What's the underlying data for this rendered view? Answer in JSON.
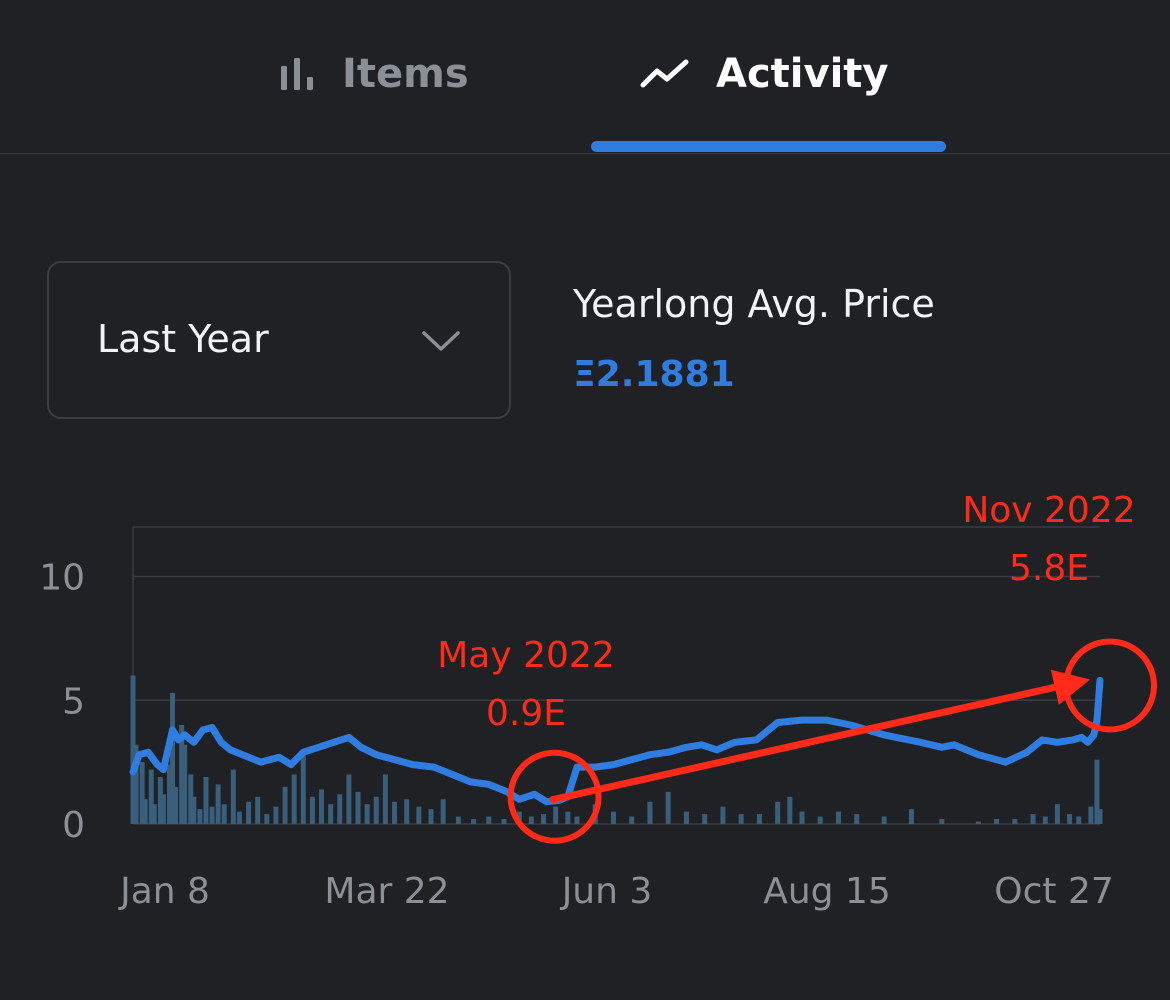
{
  "tabs": [
    {
      "label": "Items",
      "icon": "bar-chart-icon",
      "active": false
    },
    {
      "label": "Activity",
      "icon": "trend-line-icon",
      "active": true
    }
  ],
  "range_select": {
    "value": "Last Year",
    "icon": "chevron-down-icon"
  },
  "summary": {
    "title": "Yearlong Avg. Price",
    "value": "Ξ2.1881"
  },
  "colors": {
    "accent": "#2f7de1",
    "annotation": "#ff2a17",
    "volume": "#3a5f7c",
    "background": "#202124"
  },
  "chart_data": {
    "type": "line",
    "title": "",
    "xlabel": "",
    "ylabel": "",
    "ylim": [
      0,
      12
    ],
    "y_ticks": [
      0,
      5,
      10
    ],
    "x_tick_labels": [
      "Jan 8",
      "Mar 22",
      "Jun 3",
      "Aug 15",
      "Oct 27"
    ],
    "x_range": [
      "2022-01-01",
      "2022-11-15"
    ],
    "grid": true,
    "series": [
      {
        "kind": "line",
        "points": [
          [
            "2022-01-01",
            2.1
          ],
          [
            "2022-01-03",
            2.8
          ],
          [
            "2022-01-06",
            2.9
          ],
          [
            "2022-01-09",
            2.4
          ],
          [
            "2022-01-11",
            2.2
          ],
          [
            "2022-01-14",
            3.8
          ],
          [
            "2022-01-16",
            3.4
          ],
          [
            "2022-01-18",
            3.6
          ],
          [
            "2022-01-21",
            3.3
          ],
          [
            "2022-01-24",
            3.8
          ],
          [
            "2022-01-27",
            3.9
          ],
          [
            "2022-01-30",
            3.3
          ],
          [
            "2022-02-02",
            3.0
          ],
          [
            "2022-02-06",
            2.8
          ],
          [
            "2022-02-12",
            2.5
          ],
          [
            "2022-02-18",
            2.7
          ],
          [
            "2022-02-22",
            2.4
          ],
          [
            "2022-02-26",
            2.9
          ],
          [
            "2022-03-03",
            3.1
          ],
          [
            "2022-03-08",
            3.3
          ],
          [
            "2022-03-13",
            3.5
          ],
          [
            "2022-03-17",
            3.1
          ],
          [
            "2022-03-22",
            2.8
          ],
          [
            "2022-03-28",
            2.6
          ],
          [
            "2022-04-03",
            2.4
          ],
          [
            "2022-04-10",
            2.3
          ],
          [
            "2022-04-16",
            2.0
          ],
          [
            "2022-04-22",
            1.7
          ],
          [
            "2022-04-28",
            1.6
          ],
          [
            "2022-05-04",
            1.3
          ],
          [
            "2022-05-08",
            1.0
          ],
          [
            "2022-05-13",
            1.2
          ],
          [
            "2022-05-17",
            0.9
          ],
          [
            "2022-05-21",
            0.95
          ],
          [
            "2022-05-24",
            1.1
          ],
          [
            "2022-05-27",
            2.3
          ],
          [
            "2022-06-02",
            2.3
          ],
          [
            "2022-06-08",
            2.4
          ],
          [
            "2022-06-14",
            2.6
          ],
          [
            "2022-06-20",
            2.8
          ],
          [
            "2022-06-26",
            2.9
          ],
          [
            "2022-07-02",
            3.1
          ],
          [
            "2022-07-07",
            3.2
          ],
          [
            "2022-07-12",
            3.0
          ],
          [
            "2022-07-18",
            3.3
          ],
          [
            "2022-07-25",
            3.4
          ],
          [
            "2022-08-01",
            4.1
          ],
          [
            "2022-08-09",
            4.2
          ],
          [
            "2022-08-17",
            4.2
          ],
          [
            "2022-08-25",
            4.0
          ],
          [
            "2022-09-05",
            3.6
          ],
          [
            "2022-09-17",
            3.3
          ],
          [
            "2022-09-24",
            3.1
          ],
          [
            "2022-09-28",
            3.2
          ],
          [
            "2022-10-06",
            2.8
          ],
          [
            "2022-10-15",
            2.5
          ],
          [
            "2022-10-22",
            2.9
          ],
          [
            "2022-10-27",
            3.4
          ],
          [
            "2022-11-01",
            3.3
          ],
          [
            "2022-11-06",
            3.4
          ],
          [
            "2022-11-09",
            3.5
          ],
          [
            "2022-11-11",
            3.3
          ],
          [
            "2022-11-13",
            3.6
          ],
          [
            "2022-11-14",
            4.2
          ],
          [
            "2022-11-15",
            5.8
          ]
        ]
      },
      {
        "kind": "bar",
        "values": [
          [
            "2022-01-01",
            6.0
          ],
          [
            "2022-01-02",
            3.2
          ],
          [
            "2022-01-04",
            2.5
          ],
          [
            "2022-01-05",
            1.0
          ],
          [
            "2022-01-07",
            2.2
          ],
          [
            "2022-01-08",
            0.8
          ],
          [
            "2022-01-10",
            1.9
          ],
          [
            "2022-01-11",
            1.2
          ],
          [
            "2022-01-13",
            2.4
          ],
          [
            "2022-01-14",
            5.3
          ],
          [
            "2022-01-15",
            1.5
          ],
          [
            "2022-01-17",
            4.0
          ],
          [
            "2022-01-18",
            3.2
          ],
          [
            "2022-01-20",
            2.0
          ],
          [
            "2022-01-21",
            1.1
          ],
          [
            "2022-01-23",
            0.6
          ],
          [
            "2022-01-25",
            1.9
          ],
          [
            "2022-01-27",
            0.7
          ],
          [
            "2022-01-29",
            1.6
          ],
          [
            "2022-01-31",
            0.8
          ],
          [
            "2022-02-03",
            2.2
          ],
          [
            "2022-02-05",
            0.5
          ],
          [
            "2022-02-08",
            0.9
          ],
          [
            "2022-02-11",
            1.1
          ],
          [
            "2022-02-14",
            0.4
          ],
          [
            "2022-02-17",
            0.7
          ],
          [
            "2022-02-20",
            1.5
          ],
          [
            "2022-02-23",
            2.0
          ],
          [
            "2022-02-26",
            3.0
          ],
          [
            "2022-03-01",
            1.1
          ],
          [
            "2022-03-04",
            1.4
          ],
          [
            "2022-03-07",
            0.8
          ],
          [
            "2022-03-10",
            1.2
          ],
          [
            "2022-03-13",
            2.0
          ],
          [
            "2022-03-16",
            1.3
          ],
          [
            "2022-03-19",
            0.8
          ],
          [
            "2022-03-22",
            1.1
          ],
          [
            "2022-03-25",
            2.0
          ],
          [
            "2022-03-28",
            0.9
          ],
          [
            "2022-04-01",
            1.0
          ],
          [
            "2022-04-05",
            0.7
          ],
          [
            "2022-04-09",
            0.6
          ],
          [
            "2022-04-13",
            1.0
          ],
          [
            "2022-04-18",
            0.3
          ],
          [
            "2022-04-23",
            0.2
          ],
          [
            "2022-04-28",
            0.3
          ],
          [
            "2022-05-03",
            0.2
          ],
          [
            "2022-05-08",
            0.5
          ],
          [
            "2022-05-12",
            0.3
          ],
          [
            "2022-05-16",
            0.4
          ],
          [
            "2022-05-20",
            0.7
          ],
          [
            "2022-05-24",
            0.5
          ],
          [
            "2022-05-27",
            0.3
          ],
          [
            "2022-06-02",
            0.8
          ],
          [
            "2022-06-08",
            0.5
          ],
          [
            "2022-06-14",
            0.3
          ],
          [
            "2022-06-20",
            0.9
          ],
          [
            "2022-06-26",
            1.3
          ],
          [
            "2022-07-02",
            0.5
          ],
          [
            "2022-07-08",
            0.4
          ],
          [
            "2022-07-14",
            0.7
          ],
          [
            "2022-07-20",
            0.4
          ],
          [
            "2022-07-26",
            0.4
          ],
          [
            "2022-08-01",
            0.9
          ],
          [
            "2022-08-05",
            1.1
          ],
          [
            "2022-08-09",
            0.5
          ],
          [
            "2022-08-15",
            0.3
          ],
          [
            "2022-08-21",
            0.5
          ],
          [
            "2022-08-27",
            0.4
          ],
          [
            "2022-09-05",
            0.3
          ],
          [
            "2022-09-14",
            0.6
          ],
          [
            "2022-09-24",
            0.2
          ],
          [
            "2022-10-06",
            0.1
          ],
          [
            "2022-10-12",
            0.2
          ],
          [
            "2022-10-18",
            0.2
          ],
          [
            "2022-10-24",
            0.4
          ],
          [
            "2022-10-28",
            0.3
          ],
          [
            "2022-11-01",
            0.8
          ],
          [
            "2022-11-05",
            0.4
          ],
          [
            "2022-11-08",
            0.3
          ],
          [
            "2022-11-12",
            0.7
          ],
          [
            "2022-11-14",
            2.6
          ],
          [
            "2022-11-15",
            0.6
          ]
        ]
      }
    ],
    "annotations": [
      {
        "label": "May 2022",
        "value_label": "0.9E",
        "x": "2022-05-17",
        "y": 0.9
      },
      {
        "label": "Nov 2022",
        "value_label": "5.8E",
        "x": "2022-11-15",
        "y": 5.8
      }
    ]
  }
}
